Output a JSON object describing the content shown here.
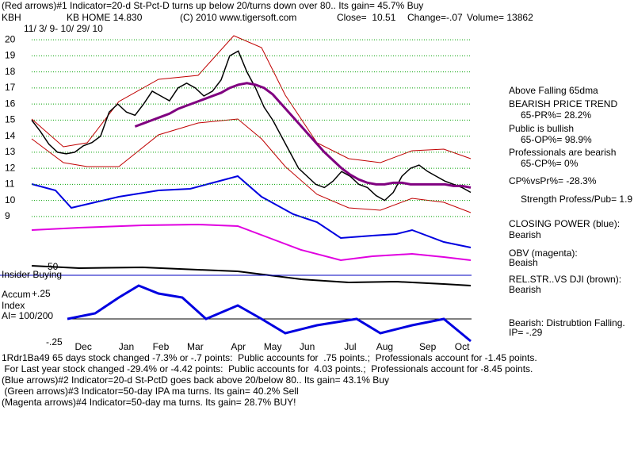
{
  "chart_data": {
    "type": "line",
    "title": "(Red arrows)#1 Indicator=20-d St-Pct-D turns up below 20/turns down over 80.. Its gain= 45.7% Buy",
    "categories": [
      null,
      null,
      null,
      null,
      "Dec",
      null,
      null,
      null,
      null,
      "Jan",
      null,
      null,
      null,
      "Feb",
      null,
      null,
      null,
      "Mar",
      null,
      null,
      null,
      null,
      "Apr",
      null,
      null,
      null,
      "May",
      null,
      null,
      null,
      "Jun",
      null,
      null,
      null,
      null,
      "Jul",
      null,
      null,
      null,
      "Aug",
      null,
      null,
      null,
      null,
      "Sep",
      null,
      null,
      null,
      "Oct",
      null,
      null,
      null
    ],
    "series": [
      {
        "name": "KB HOME 14.830",
        "color": "#000000",
        "values": [
          15.0,
          14.3,
          13.5,
          13.0,
          12.9,
          13.0,
          13.4,
          13.6,
          14.0,
          15.5,
          16.0,
          15.5,
          15.3,
          16.0,
          16.8,
          16.5,
          16.2,
          17.0,
          17.3,
          17.0,
          16.5,
          16.8,
          17.5,
          19.0,
          19.3,
          18.0,
          17.0,
          15.8,
          15.0,
          14.0,
          13.0,
          12.0,
          11.5,
          11.0,
          10.8,
          11.2,
          11.8,
          11.5,
          11.0,
          10.8,
          10.3,
          10.0,
          10.5,
          11.5,
          12.0,
          12.2,
          11.8,
          11.5,
          11.2,
          11.0,
          10.8,
          10.5
        ]
      },
      {
        "name": "Above Falling 65dma",
        "color": "#800080",
        "values": [
          null,
          null,
          null,
          null,
          null,
          null,
          null,
          null,
          null,
          null,
          null,
          null,
          14.6,
          14.8,
          15.0,
          15.2,
          15.4,
          15.7,
          15.9,
          16.1,
          16.3,
          16.5,
          16.7,
          17.0,
          17.2,
          17.3,
          17.2,
          17.0,
          16.6,
          16.0,
          15.4,
          14.8,
          14.2,
          13.6,
          13.0,
          12.5,
          12.0,
          11.6,
          11.3,
          11.1,
          11.0,
          11.0,
          11.1,
          11.1,
          11.0,
          11.0,
          11.0,
          11.0,
          11.0,
          10.9,
          10.9,
          10.8
        ]
      }
    ],
    "ylim": [
      8.5,
      20.5
    ],
    "yticks": [
      9,
      10,
      11,
      12,
      13,
      14,
      15,
      16,
      17,
      18,
      19,
      20
    ],
    "grid": true
  },
  "labels": {
    "symbol": "KBH",
    "copyright": "(C) 2010 www.tigersoft.com",
    "close": "Close=  10.51",
    "change": "Change=-.07",
    "volume": "Volume= 13862",
    "dates": "11/ 3/ 9- 10/ 29/ 10",
    "right": [
      "BEARISH PRICE TREND",
      "65-PR%= 28.2%",
      "Public is bullish",
      "65-OP%= 98.9%",
      "Professionals are bearish",
      "65-CP%= 0%",
      "CP%vsPr%= -28.3%",
      "Strength Profess/Pub= 1.9",
      "CLOSING POWER (blue):",
      "Bearish",
      "OBV (magenta):",
      "Beaish",
      "REL.STR..VS DJI (brown):",
      "Bearish",
      "Bearish: Distrubtion Falling.",
      "IP= -.29"
    ],
    "insider": "Insider Buying",
    "accum1": "Accum",
    "accum2": "Index",
    "ai": "AI= 100/200",
    "plus": "+.25",
    "minus": "-.25",
    "fifty": "50",
    "bottom": [
      "1Rdr1Ba49 65 days stock changed -7.3% or -.7 points:  Public accounts for  .75 points.;  Professionals account for -1.45 points.",
      " For Last year stock changed -29.4% or -4.42 points:  Public accounts for  4.03 points.;  Professionals account for -8.45 points.",
      "(Blue arrows)#2 Indicator=20-d St-PctD goes back above 20/below 80.. Its gain= 43.1% Buy",
      " (Green arrows)#3 Indicator=50-day IPA ma turns. Its gain= 40.2% Sell",
      "(Magenta arrows)#4 Indicator=50-day ma turns. Its gain= 28.7% BUY!"
    ]
  }
}
